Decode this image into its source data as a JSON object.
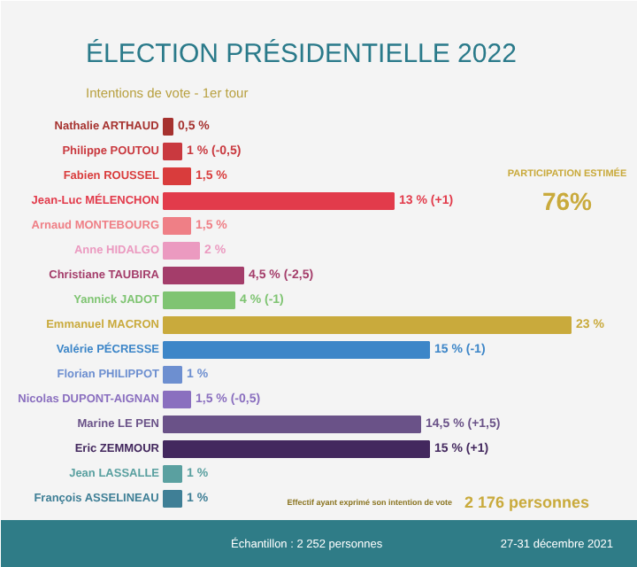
{
  "chart_data": {
    "type": "bar",
    "orientation": "horizontal",
    "title": "ÉLECTION PRÉSIDENTIELLE 2022",
    "subtitle": "Intentions de vote - 1er tour",
    "categories": [
      "Nathalie ARTHAUD",
      "Philippe POUTOU",
      "Fabien ROUSSEL",
      "Jean-Luc MÉLENCHON",
      "Arnaud MONTEBOURG",
      "Anne HIDALGO",
      "Christiane TAUBIRA",
      "Yannick JADOT",
      "Emmanuel MACRON",
      "Valérie PÉCRESSE",
      "Florian PHILIPPOT",
      "Nicolas DUPONT-AIGNAN",
      "Marine LE PEN",
      "Eric ZEMMOUR",
      "Jean LASSALLE",
      "François ASSELINEAU"
    ],
    "values": [
      0.5,
      1,
      1.5,
      13,
      1.5,
      2,
      4.5,
      4,
      23,
      15,
      1,
      1.5,
      14.5,
      15,
      1,
      1
    ],
    "value_labels": [
      "0,5 %",
      "1 % (-0,5)",
      "1,5 %",
      "13 % (+1)",
      "1,5 %",
      "2 %",
      "4,5 % (-2,5)",
      "4 % (-1)",
      "23 %",
      "15 % (-1)",
      "1 %",
      "1,5 % (-0,5)",
      "14,5 % (+1,5)",
      "15 % (+1)",
      "1 %",
      "1 %"
    ],
    "colors": [
      "#a6322f",
      "#c9393f",
      "#d93c3c",
      "#e23b4b",
      "#ef7f86",
      "#eb9ac0",
      "#a43d6a",
      "#7fc472",
      "#c9aa3c",
      "#3d86c8",
      "#6d8fd0",
      "#8a6fbf",
      "#6a5288",
      "#43285e",
      "#5aa0a0",
      "#3f7f96"
    ],
    "annotations": [
      "PARTICIPATION ESTIMÉE",
      "76%",
      "Effectif ayant exprimé son intention de vote",
      "2 176 personnes",
      "Échantillon : 2 252 personnes",
      "27-31 décembre 2021"
    ]
  }
}
